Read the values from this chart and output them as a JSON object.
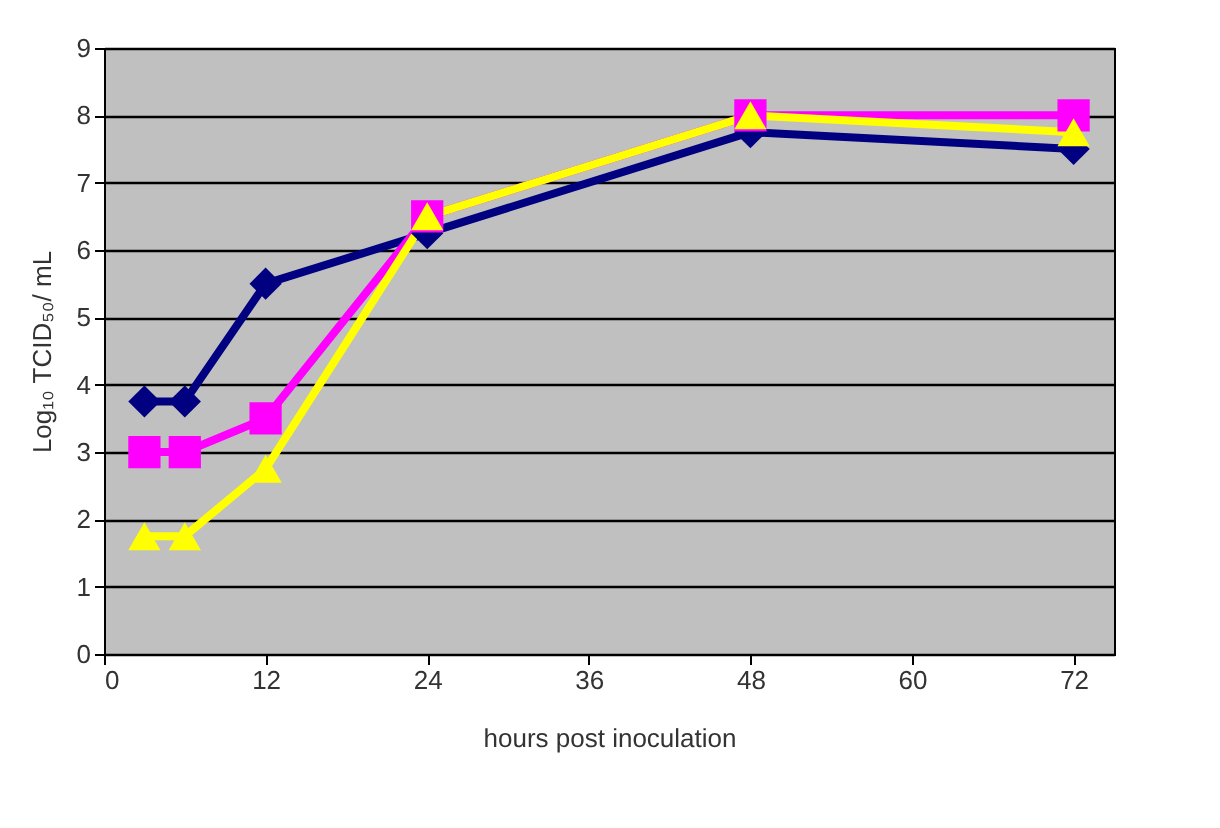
{
  "chart_data": {
    "type": "line",
    "xlabel": "hours post inoculation",
    "ylabel": "Log₁₀ TCID₅₀/ mL",
    "x": [
      3,
      6,
      12,
      24,
      48,
      72
    ],
    "series": [
      {
        "color": "#000080",
        "marker": "diamond",
        "values": [
          3.75,
          3.75,
          5.5,
          6.25,
          7.75,
          7.5
        ]
      },
      {
        "color": "#ff00ff",
        "marker": "square",
        "values": [
          3,
          3,
          3.5,
          6.5,
          8,
          8
        ]
      },
      {
        "color": "#ffff00",
        "marker": "triangle",
        "values": [
          1.75,
          1.75,
          2.75,
          6.5,
          8,
          7.75
        ]
      }
    ],
    "xlim": [
      0,
      75
    ],
    "xticks": [
      0,
      12,
      24,
      36,
      48,
      60,
      72
    ],
    "ylim": [
      0,
      9
    ],
    "yticks": [
      0,
      1,
      2,
      3,
      4,
      5,
      6,
      7,
      8,
      9
    ],
    "grid": "y",
    "legend": false
  }
}
